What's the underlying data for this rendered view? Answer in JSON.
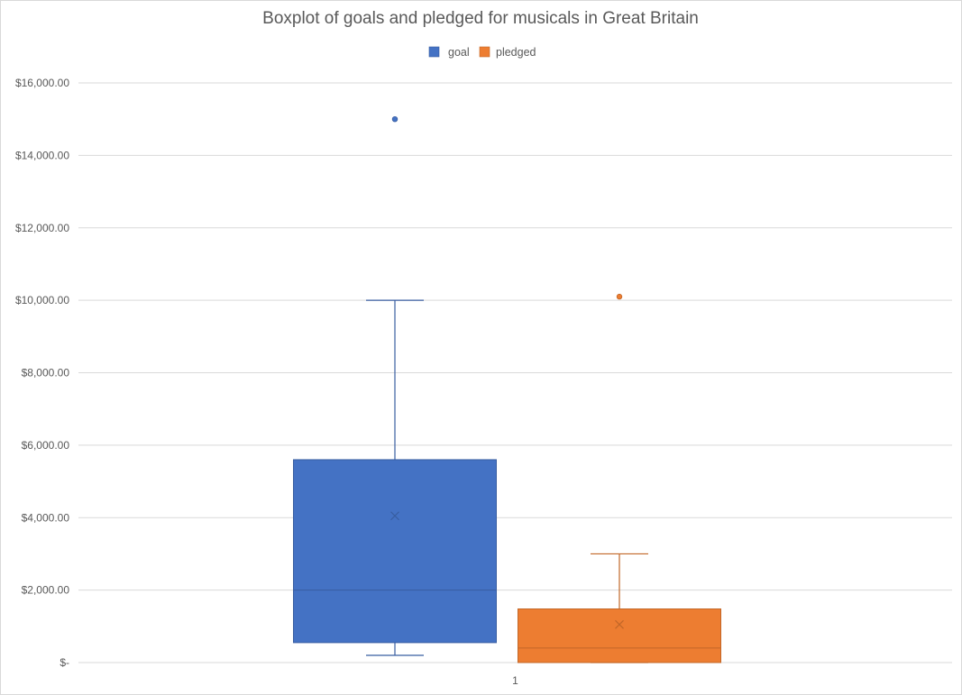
{
  "chart_data": {
    "type": "boxplot",
    "title": "Boxplot of  goals and pledged for musicals in Great Britain",
    "xlabel": "",
    "ylabel": "",
    "categories": [
      "1"
    ],
    "ylim": [
      0,
      16000
    ],
    "yticks": [
      0,
      2000,
      4000,
      6000,
      8000,
      10000,
      12000,
      14000,
      16000
    ],
    "ytick_labels": [
      "$-",
      "$2,000.00",
      "$4,000.00",
      "$6,000.00",
      "$8,000.00",
      "$10,000.00",
      "$12,000.00",
      "$14,000.00",
      "$16,000.00"
    ],
    "grid": true,
    "legend_position": "top",
    "series": [
      {
        "name": "goal",
        "color": "#4472c4",
        "whisker_low": 200,
        "q1": 550,
        "median": 2000,
        "q3": 5600,
        "whisker_high": 10000,
        "mean": 4050,
        "outliers": [
          15000
        ]
      },
      {
        "name": "pledged",
        "color": "#ed7d31",
        "whisker_low": 0,
        "q1": 0,
        "median": 400,
        "q3": 1480,
        "whisker_high": 3000,
        "mean": 1050,
        "outliers": [
          10100
        ]
      }
    ]
  }
}
